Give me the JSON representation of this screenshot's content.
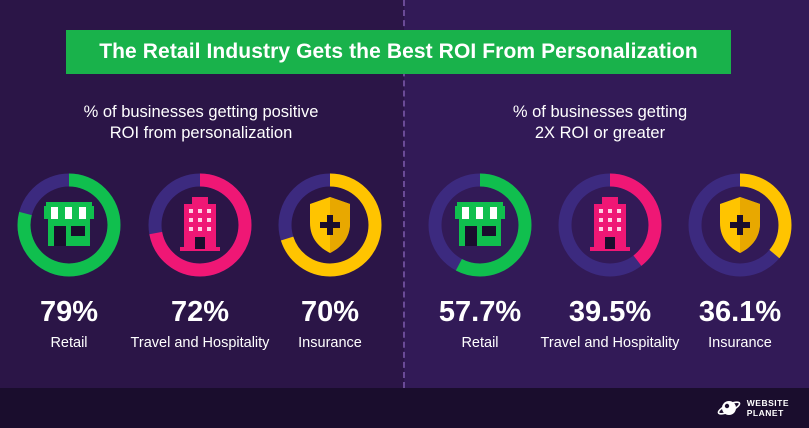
{
  "title": "The Retail Industry Gets the Best ROI From Personalization",
  "colors": {
    "track": "#3c2a7f",
    "retail": "#10bf4e",
    "travel": "#ef1775",
    "insurance": "#ffc400",
    "banner": "#19b24b"
  },
  "chart_data": [
    {
      "type": "pie",
      "title": "% of businesses getting positive ROI from personalization",
      "categories": [
        "Retail",
        "Travel and Hospitality",
        "Insurance"
      ],
      "values": [
        79,
        72,
        70
      ],
      "unit": "%"
    },
    {
      "type": "pie",
      "title": "% of businesses getting 2X ROI or greater",
      "categories": [
        "Retail",
        "Travel and Hospitality",
        "Insurance"
      ],
      "values": [
        57.7,
        39.5,
        36.1
      ],
      "unit": "%"
    }
  ],
  "left": {
    "subtitle_line1": "% of businesses getting positive",
    "subtitle_line2": "ROI from personalization",
    "items": [
      {
        "value": "79%",
        "label": "Retail",
        "icon": "store-icon"
      },
      {
        "value": "72%",
        "label": "Travel and Hospitality",
        "icon": "hotel-icon"
      },
      {
        "value": "70%",
        "label": "Insurance",
        "icon": "shield-icon"
      }
    ]
  },
  "right": {
    "subtitle_line1": "% of businesses getting",
    "subtitle_line2": "2X ROI or greater",
    "items": [
      {
        "value": "57.7%",
        "label": "Retail",
        "icon": "store-icon"
      },
      {
        "value": "39.5%",
        "label": "Travel and Hospitality",
        "icon": "hotel-icon"
      },
      {
        "value": "36.1%",
        "label": "Insurance",
        "icon": "shield-icon"
      }
    ]
  },
  "brand": {
    "line1": "WEBSITE",
    "line2": "PLANET",
    "icon": "planet-logo-icon"
  }
}
